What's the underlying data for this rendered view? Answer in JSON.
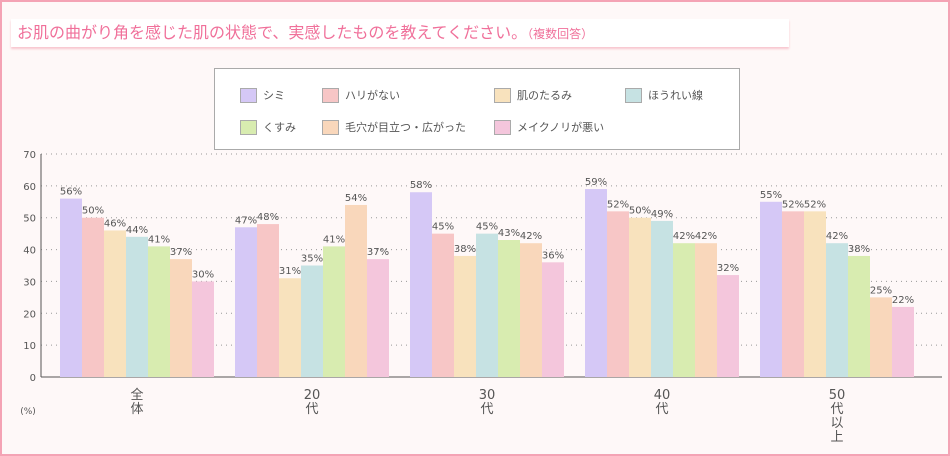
{
  "title": "お肌の曲がり角を感じた肌の状態で、実感したものを教えてください。",
  "title_note": "（複数回答）",
  "chart_data": {
    "type": "bar",
    "title": "お肌の曲がり角を感じた肌の状態で、実感したものを教えてください。（複数回答）",
    "ylabel": "(%)",
    "ylim": [
      0,
      70
    ],
    "yticks": [
      0,
      10,
      20,
      30,
      40,
      50,
      60,
      70
    ],
    "grid": true,
    "legend_placement": "top",
    "categories": [
      "全体",
      "20代",
      "30代",
      "40代",
      "50代以上"
    ],
    "series": [
      {
        "name": "シミ",
        "color": "#d5c8f6",
        "values": [
          56,
          47,
          58,
          59,
          55
        ]
      },
      {
        "name": "ハリがない",
        "color": "#f7c6c6",
        "values": [
          50,
          48,
          45,
          52,
          52
        ]
      },
      {
        "name": "肌のたるみ",
        "color": "#f8e2bd",
        "values": [
          46,
          31,
          38,
          50,
          52
        ]
      },
      {
        "name": "ほうれい線",
        "color": "#c6e2e3",
        "values": [
          44,
          35,
          45,
          49,
          42
        ]
      },
      {
        "name": "くすみ",
        "color": "#d8ecb0",
        "values": [
          41,
          41,
          43,
          42,
          38
        ]
      },
      {
        "name": "毛穴が目立つ・広がった",
        "color": "#f9d7bb",
        "values": [
          37,
          54,
          42,
          42,
          25
        ]
      },
      {
        "name": "メイクノリが悪い",
        "color": "#f4c6dc",
        "values": [
          30,
          37,
          36,
          32,
          22
        ]
      }
    ]
  }
}
